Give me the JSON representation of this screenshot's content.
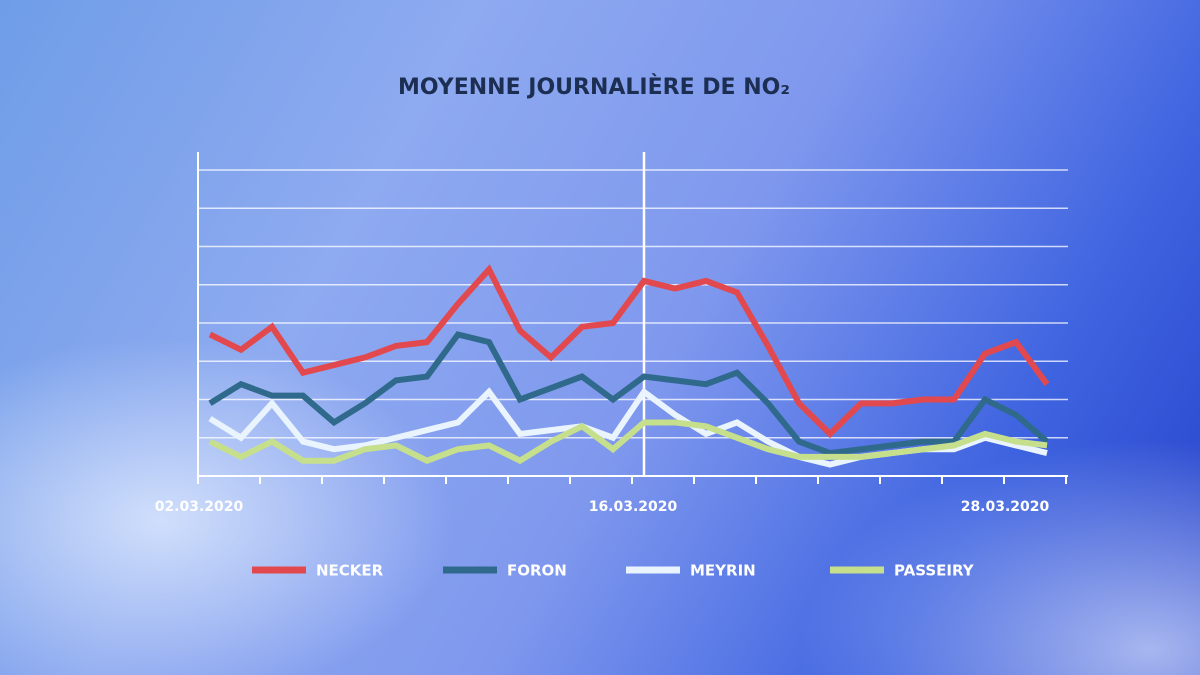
{
  "chart_data": {
    "type": "line",
    "title": "MOYENNE JOURNALIÈRE DE NO₂",
    "categories": [
      "02.03.2020",
      null,
      null,
      null,
      null,
      null,
      null,
      null,
      null,
      null,
      null,
      null,
      null,
      null,
      "16.03.2020",
      null,
      null,
      null,
      null,
      null,
      null,
      null,
      null,
      null,
      null,
      null,
      "28.03.2020",
      null
    ],
    "series": [
      {
        "name": "NECKER",
        "color": "#e2494e",
        "values": [
          3.7,
          3.3,
          3.9,
          2.7,
          2.9,
          3.1,
          3.4,
          3.5,
          4.5,
          5.4,
          3.8,
          3.1,
          3.9,
          4.0,
          5.1,
          4.9,
          5.1,
          4.8,
          3.4,
          1.9,
          1.1,
          1.9,
          1.9,
          2.0,
          2.0,
          3.2,
          3.5,
          2.4
        ]
      },
      {
        "name": "FORON",
        "color": "#2f6a8c",
        "values": [
          1.9,
          2.4,
          2.1,
          2.1,
          1.4,
          1.9,
          2.5,
          2.6,
          3.7,
          3.5,
          2.0,
          2.3,
          2.6,
          2.0,
          2.6,
          2.5,
          2.4,
          2.7,
          1.9,
          0.9,
          0.6,
          0.7,
          0.8,
          0.9,
          0.9,
          2.0,
          1.6,
          0.9
        ]
      },
      {
        "name": "MEYRIN",
        "color": "#eaf4ff",
        "values": [
          1.5,
          1.0,
          1.9,
          0.9,
          0.7,
          0.8,
          1.0,
          1.2,
          1.4,
          2.2,
          1.1,
          1.2,
          1.3,
          1.0,
          2.2,
          1.6,
          1.1,
          1.4,
          0.9,
          0.5,
          0.3,
          0.5,
          0.6,
          0.7,
          0.7,
          1.0,
          0.8,
          0.6
        ]
      },
      {
        "name": "PASSEIRY",
        "color": "#c6df8c",
        "values": [
          0.9,
          0.5,
          0.9,
          0.4,
          0.4,
          0.7,
          0.8,
          0.4,
          0.7,
          0.8,
          0.4,
          0.9,
          1.3,
          0.7,
          1.4,
          1.4,
          1.3,
          1.0,
          0.7,
          0.5,
          0.5,
          0.5,
          0.6,
          0.7,
          0.8,
          1.1,
          0.9,
          0.8
        ]
      }
    ],
    "ylim": [
      0,
      8
    ],
    "yticks": [
      1,
      2,
      3,
      4,
      5,
      6,
      7,
      8
    ],
    "grid": true
  }
}
